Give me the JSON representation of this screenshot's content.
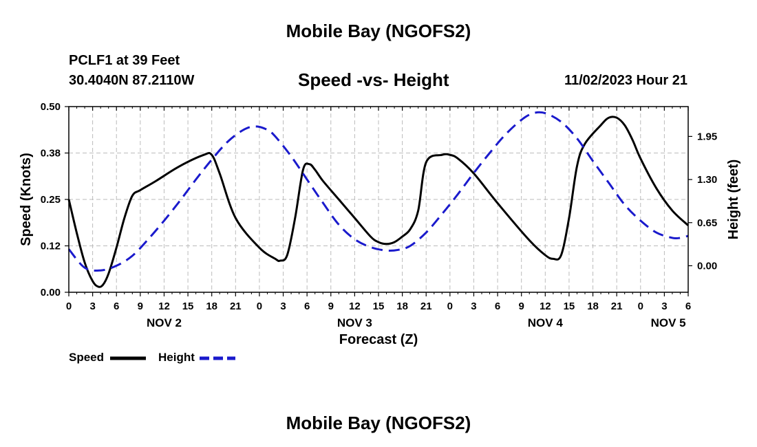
{
  "header": {
    "title": "Mobile Bay (NGOFS2)",
    "station": "PCLF1 at 39 Feet",
    "coords": "30.4040N  87.2110W",
    "subtitle": "Speed -vs- Height",
    "datetime": "11/02/2023 Hour 21"
  },
  "footer": {
    "title": "Mobile Bay (NGOFS2)"
  },
  "legend": {
    "speed_label": "Speed",
    "height_label": "Height"
  },
  "colors": {
    "speed": "#000000",
    "height": "#1a1acc",
    "grid": "#bbbbbb"
  },
  "chart_data": {
    "type": "line",
    "title": "Speed -vs- Height",
    "xlabel": "Forecast (Z)",
    "ylabel": "Speed (Knots)",
    "y2label": "Height (feet)",
    "xlim": [
      0,
      78
    ],
    "ylim": [
      0,
      0.5
    ],
    "y2lim": [
      -0.4,
      2.4
    ],
    "yticks": [
      0,
      0.125,
      0.25,
      0.375,
      0.5
    ],
    "ytick_labels": [
      "0.00",
      "0.12",
      "0.25",
      "0.38",
      "0.50"
    ],
    "y2ticks": [
      0,
      0.65,
      1.3,
      1.95
    ],
    "y2tick_labels": [
      "0.00",
      "0.65",
      "1.30",
      "1.95"
    ],
    "xticks": [
      0,
      3,
      6,
      9,
      12,
      15,
      18,
      21,
      24,
      27,
      30,
      33,
      36,
      39,
      42,
      45,
      48,
      51,
      54,
      57,
      60,
      63,
      66,
      69,
      72,
      75,
      78
    ],
    "xtick_labels": [
      "0",
      "3",
      "6",
      "9",
      "12",
      "15",
      "18",
      "21",
      "0",
      "3",
      "6",
      "9",
      "12",
      "15",
      "18",
      "21",
      "0",
      "3",
      "6",
      "9",
      "12",
      "15",
      "18",
      "21",
      "0",
      "3",
      "6"
    ],
    "day_labels": [
      {
        "x": 12,
        "label": "NOV 2"
      },
      {
        "x": 36,
        "label": "NOV 3"
      },
      {
        "x": 60,
        "label": "NOV 4"
      },
      {
        "x": 75.5,
        "label": "NOV 5"
      }
    ],
    "grid": true,
    "series": [
      {
        "name": "Speed",
        "axis": "left",
        "style": "solid",
        "x": [
          0,
          1,
          2,
          3,
          3.7,
          4.3,
          5,
          6,
          7,
          8,
          9,
          11,
          14,
          17,
          18,
          19,
          21,
          24,
          26,
          26.6,
          27.5,
          28.5,
          29.5,
          30.3,
          31,
          32,
          34,
          36,
          38,
          39,
          40,
          41,
          42,
          43,
          44,
          45,
          47,
          48,
          49,
          51,
          54,
          58,
          60,
          61,
          62,
          63,
          64,
          65,
          67,
          68,
          69,
          70,
          71,
          72,
          74,
          76,
          78
        ],
        "y": [
          0.25,
          0.16,
          0.08,
          0.03,
          0.015,
          0.02,
          0.05,
          0.12,
          0.2,
          0.26,
          0.275,
          0.3,
          0.34,
          0.37,
          0.37,
          0.32,
          0.2,
          0.12,
          0.09,
          0.085,
          0.1,
          0.2,
          0.33,
          0.345,
          0.33,
          0.3,
          0.25,
          0.2,
          0.15,
          0.135,
          0.13,
          0.135,
          0.15,
          0.17,
          0.22,
          0.35,
          0.37,
          0.37,
          0.36,
          0.32,
          0.24,
          0.14,
          0.1,
          0.09,
          0.1,
          0.2,
          0.34,
          0.4,
          0.45,
          0.47,
          0.47,
          0.45,
          0.41,
          0.36,
          0.28,
          0.22,
          0.18
        ]
      },
      {
        "name": "Height",
        "axis": "right",
        "style": "dashed",
        "x": [
          0,
          2,
          4,
          6,
          8,
          10,
          12,
          14,
          16,
          18,
          20,
          22,
          23.5,
          25,
          26,
          28,
          30,
          32,
          34,
          36,
          38,
          40,
          41.5,
          43,
          45,
          47,
          49,
          51,
          53,
          55,
          57,
          58.5,
          60,
          62,
          64,
          66,
          68,
          70,
          72,
          74,
          76,
          77,
          78
        ],
        "y": [
          0.25,
          -0.03,
          -0.07,
          0.0,
          0.15,
          0.4,
          0.68,
          0.98,
          1.3,
          1.6,
          1.87,
          2.05,
          2.1,
          2.05,
          1.95,
          1.65,
          1.3,
          0.95,
          0.62,
          0.4,
          0.28,
          0.23,
          0.24,
          0.3,
          0.5,
          0.78,
          1.08,
          1.4,
          1.7,
          1.98,
          2.2,
          2.3,
          2.3,
          2.17,
          1.92,
          1.58,
          1.25,
          0.92,
          0.68,
          0.5,
          0.42,
          0.42,
          0.45
        ]
      }
    ]
  }
}
